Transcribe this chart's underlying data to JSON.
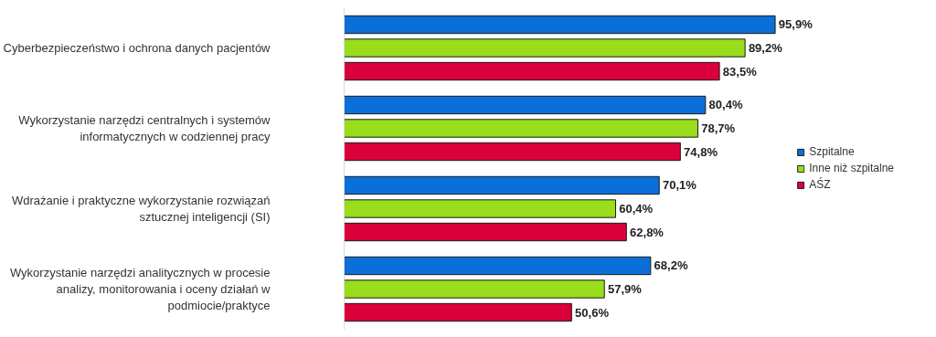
{
  "chart_data": {
    "type": "bar",
    "orientation": "horizontal",
    "categories": [
      "Cyberbezpieczeństwo i ochrona danych pacjentów",
      "Wykorzystanie narzędzi centralnych i systemów informatycznych w codziennej pracy",
      "Wdrażanie i praktyczne wykorzystanie rozwiązań sztucznej inteligencji (SI)",
      "Wykorzystanie narzędzi analitycznych w procesie analizy, monitorowania i oceny działań w podmiocie/praktyce"
    ],
    "series": [
      {
        "name": "Szpitalne",
        "color": "#0a6fd8",
        "values": [
          95.9,
          80.4,
          70.1,
          68.2
        ],
        "value_labels": [
          "95,9%",
          "80,4%",
          "70,1%",
          "68,2%"
        ]
      },
      {
        "name": "Inne niż szpitalne",
        "color": "#99dd1c",
        "values": [
          89.2,
          78.7,
          60.4,
          57.9
        ],
        "value_labels": [
          "89,2%",
          "78,7%",
          "60,4%",
          "57,9%"
        ]
      },
      {
        "name": "AŚZ",
        "color": "#d9003b",
        "values": [
          83.5,
          74.8,
          62.8,
          50.6
        ],
        "value_labels": [
          "83,5%",
          "74,8%",
          "62,8%",
          "50,6%"
        ]
      }
    ],
    "legend": "right",
    "grid": false,
    "tick_labels": "y"
  }
}
